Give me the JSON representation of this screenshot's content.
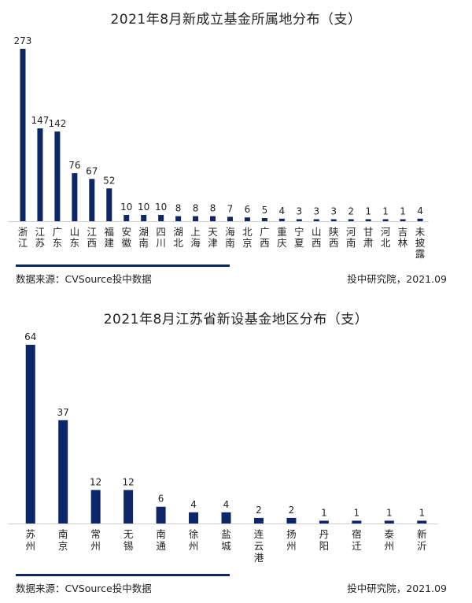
{
  "chart_data": [
    {
      "type": "bar",
      "title": "2021年8月新成立基金所属地分布（支）",
      "categories": [
        "浙江",
        "江苏",
        "广东",
        "山东",
        "江西",
        "福建",
        "安徽",
        "湖南",
        "四川",
        "湖北",
        "上海",
        "天津",
        "海南",
        "北京",
        "广西",
        "重庆",
        "宁夏",
        "山西",
        "陕西",
        "河南",
        "甘肃",
        "河北",
        "吉林",
        "未披露"
      ],
      "values": [
        273,
        147,
        142,
        76,
        67,
        52,
        10,
        10,
        10,
        8,
        8,
        8,
        7,
        6,
        5,
        4,
        3,
        3,
        3,
        2,
        1,
        1,
        1,
        4
      ],
      "bar_color": "#0d2569",
      "source": "数据来源：CVSource投中数据",
      "credit": "投中研究院，2021.09"
    },
    {
      "type": "bar",
      "title": "2021年8月江苏省新设基金地区分布（支）",
      "categories": [
        "苏州",
        "南京",
        "常州",
        "无锡",
        "南通",
        "徐州",
        "盐城",
        "连云港",
        "扬州",
        "丹阳",
        "宿迁",
        "泰州",
        "新沂"
      ],
      "values": [
        64,
        37,
        12,
        12,
        6,
        4,
        4,
        2,
        2,
        1,
        1,
        1,
        1
      ],
      "bar_color": "#0d2569",
      "source": "数据来源：CVSource投中数据",
      "credit": "投中研究院，2021.09"
    }
  ]
}
